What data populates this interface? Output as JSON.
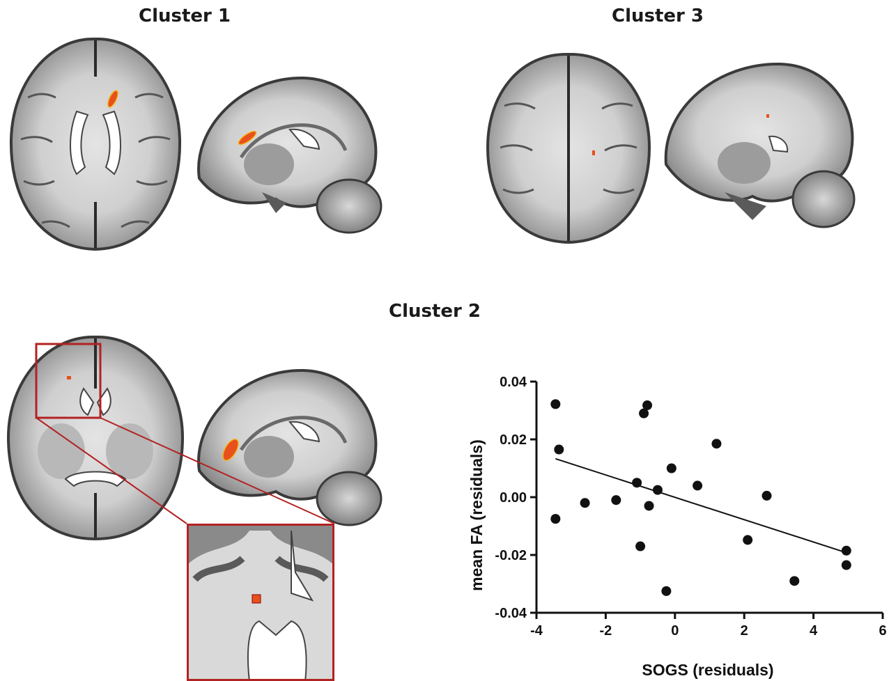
{
  "figure": {
    "cluster1_title": "Cluster 1",
    "cluster2_title": "Cluster 2",
    "cluster3_title": "Cluster 3",
    "highlight_color": "#e8501c",
    "zoom_box_color": "#b22222"
  },
  "chart_data": {
    "type": "scatter",
    "xlabel": "SOGS (residuals)",
    "ylabel": "mean FA (residuals)",
    "xlim": [
      -4,
      6
    ],
    "ylim": [
      -0.04,
      0.04
    ],
    "x_ticks": [
      -4,
      -2,
      0,
      2,
      4,
      6
    ],
    "x_tick_labels": [
      "-4",
      "-2",
      "0",
      "2",
      "4",
      "6"
    ],
    "y_ticks": [
      -0.04,
      -0.02,
      0.0,
      0.02,
      0.04
    ],
    "y_tick_labels": [
      "-0.04",
      "-0.02",
      "0.00",
      "0.02",
      "0.04"
    ],
    "points": [
      {
        "x": -3.45,
        "y": 0.0322
      },
      {
        "x": -3.35,
        "y": 0.0165
      },
      {
        "x": -3.45,
        "y": -0.0075
      },
      {
        "x": -2.6,
        "y": -0.002
      },
      {
        "x": -1.7,
        "y": -0.001
      },
      {
        "x": -1.1,
        "y": 0.005
      },
      {
        "x": -1.0,
        "y": -0.017
      },
      {
        "x": -0.9,
        "y": 0.029
      },
      {
        "x": -0.8,
        "y": 0.0318
      },
      {
        "x": -0.75,
        "y": -0.003
      },
      {
        "x": -0.5,
        "y": 0.0025
      },
      {
        "x": -0.25,
        "y": -0.0325
      },
      {
        "x": -0.1,
        "y": 0.01
      },
      {
        "x": 0.65,
        "y": 0.004
      },
      {
        "x": 1.2,
        "y": 0.0185
      },
      {
        "x": 2.1,
        "y": -0.0148
      },
      {
        "x": 2.65,
        "y": 0.0005
      },
      {
        "x": 3.45,
        "y": -0.029
      },
      {
        "x": 4.95,
        "y": -0.0185
      },
      {
        "x": 4.95,
        "y": -0.0235
      }
    ],
    "fit_line": {
      "x": [
        -3.45,
        4.95
      ],
      "y": [
        0.0133,
        -0.0192
      ]
    },
    "grid": false,
    "legend": "none"
  }
}
